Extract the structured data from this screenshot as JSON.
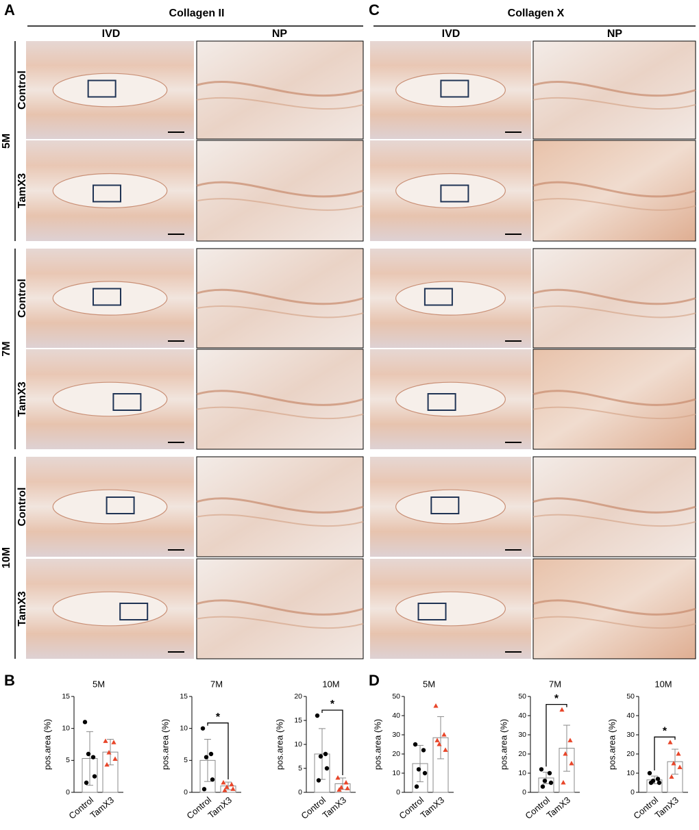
{
  "panel_a": {
    "label": "A",
    "title": "Collagen II",
    "columns": [
      "IVD",
      "NP"
    ]
  },
  "panel_c": {
    "label": "C",
    "title": "Collagen X",
    "columns": [
      "IVD",
      "NP"
    ]
  },
  "rows": [
    {
      "age": "5M",
      "groups": [
        "Control",
        "TamX3"
      ]
    },
    {
      "age": "7M",
      "groups": [
        "Control",
        "TamX3"
      ]
    },
    {
      "age": "10M",
      "groups": [
        "Control",
        "TamX3"
      ]
    }
  ],
  "panel_b": {
    "label": "B"
  },
  "panel_d": {
    "label": "D"
  },
  "chart_data": [
    {
      "type": "bar",
      "title": "5M",
      "y_label": "pos.area (%)",
      "categories": [
        "Control",
        "TamX3"
      ],
      "values": [
        5.3,
        6.3
      ],
      "errors": [
        4.2,
        2.0
      ],
      "points": [
        [
          11,
          5.5,
          6,
          2.5,
          1.5
        ],
        [
          8,
          7.8,
          6.2,
          5.2,
          4.3
        ]
      ],
      "marker_colors": [
        "#000000",
        "#e8462a"
      ],
      "ylim": [
        0,
        15
      ],
      "yticks": [
        0,
        5,
        10,
        15
      ]
    },
    {
      "type": "bar",
      "title": "7M",
      "y_label": "pos.area (%)",
      "categories": [
        "Control",
        "TamX3"
      ],
      "values": [
        5.0,
        1.0
      ],
      "errors": [
        3.3,
        0.6
      ],
      "points": [
        [
          10,
          6,
          5.5,
          2,
          0.5
        ],
        [
          1.5,
          1.2,
          0.8,
          0.5,
          0.3
        ]
      ],
      "marker_colors": [
        "#000000",
        "#e8462a"
      ],
      "ylim": [
        0,
        15
      ],
      "yticks": [
        0,
        5,
        10,
        15
      ],
      "significance": "*"
    },
    {
      "type": "bar",
      "title": "10M",
      "y_label": "pos.area (%)",
      "categories": [
        "Control",
        "TamX3"
      ],
      "values": [
        8.0,
        1.8
      ],
      "errors": [
        5.3,
        1.2
      ],
      "points": [
        [
          16,
          8,
          7.5,
          5,
          2.5
        ],
        [
          3,
          2,
          1,
          0.8,
          0.5
        ]
      ],
      "marker_colors": [
        "#000000",
        "#e8462a"
      ],
      "ylim": [
        0,
        20
      ],
      "yticks": [
        0,
        5,
        10,
        15,
        20
      ],
      "significance": "*"
    },
    {
      "type": "bar",
      "title": "5M",
      "y_label": "pos.area (%)",
      "categories": [
        "Control",
        "TamX3"
      ],
      "values": [
        15,
        28.5
      ],
      "errors": [
        9.5,
        11
      ],
      "points": [
        [
          25,
          22,
          12,
          10,
          3
        ],
        [
          45,
          30,
          25,
          22,
          27
        ]
      ],
      "marker_colors": [
        "#000000",
        "#e8462a"
      ],
      "ylim": [
        0,
        50
      ],
      "yticks": [
        0,
        10,
        20,
        30,
        40,
        50
      ]
    },
    {
      "type": "bar",
      "title": "7M",
      "y_label": "pos.area (%)",
      "categories": [
        "Control",
        "TamX3"
      ],
      "values": [
        7.5,
        23
      ],
      "errors": [
        3,
        12
      ],
      "points": [
        [
          12,
          10,
          6,
          5,
          3
        ],
        [
          43,
          27,
          20,
          15,
          5
        ]
      ],
      "marker_colors": [
        "#000000",
        "#e8462a"
      ],
      "ylim": [
        0,
        50
      ],
      "yticks": [
        0,
        10,
        20,
        30,
        40,
        50
      ],
      "significance": "*"
    },
    {
      "type": "bar",
      "title": "10M",
      "y_label": "pos.area (%)",
      "categories": [
        "Control",
        "TamX3"
      ],
      "values": [
        6.5,
        16
      ],
      "errors": [
        2,
        6.5
      ],
      "points": [
        [
          10,
          7,
          6,
          5,
          5
        ],
        [
          26,
          20,
          15,
          13,
          8
        ]
      ],
      "marker_colors": [
        "#000000",
        "#e8462a"
      ],
      "ylim": [
        0,
        50
      ],
      "yticks": [
        0,
        10,
        20,
        30,
        40,
        50
      ],
      "significance": "*"
    }
  ]
}
